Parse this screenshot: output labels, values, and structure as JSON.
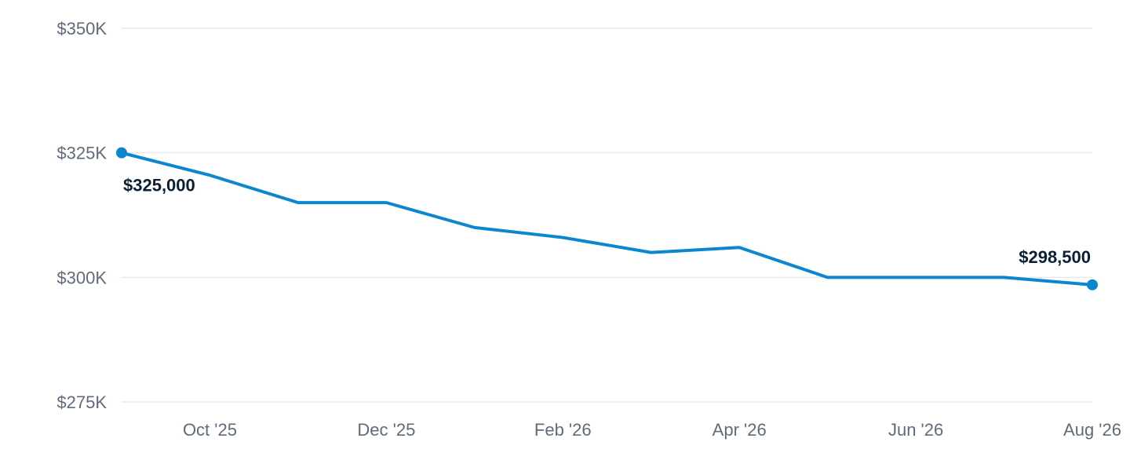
{
  "chart_data": {
    "type": "line",
    "title": "",
    "xlabel": "",
    "ylabel": "",
    "x": [
      "2025-09",
      "2025-10",
      "2025-11",
      "2025-12",
      "2026-01",
      "2026-02",
      "2026-03",
      "2026-04",
      "2026-05",
      "2026-06",
      "2026-07",
      "2026-08"
    ],
    "series": [
      {
        "values": [
          325000,
          320500,
          315000,
          315000,
          310000,
          308000,
          305000,
          306000,
          300000,
          300000,
          300000,
          298500
        ],
        "color": "#0a87cf"
      }
    ],
    "ylim": [
      275000,
      350000
    ],
    "yticks": [
      275000,
      300000,
      325000,
      350000
    ],
    "ytick_labels": [
      "$275K",
      "$300K",
      "$325K",
      "$350K"
    ],
    "xticks": [
      "2025-10",
      "2025-12",
      "2026-02",
      "2026-04",
      "2026-06",
      "2026-08"
    ],
    "xtick_labels": [
      "Oct '25",
      "Dec '25",
      "Feb '26",
      "Apr '26",
      "Jun '26",
      "Aug '26"
    ],
    "annotations": [
      {
        "x": "2025-09",
        "y": 325000,
        "label": "$325,000"
      },
      {
        "x": "2026-08",
        "y": 298500,
        "label": "$298,500"
      }
    ],
    "grid": true,
    "gridline_color": "#e6e9ee",
    "legend": "none"
  }
}
